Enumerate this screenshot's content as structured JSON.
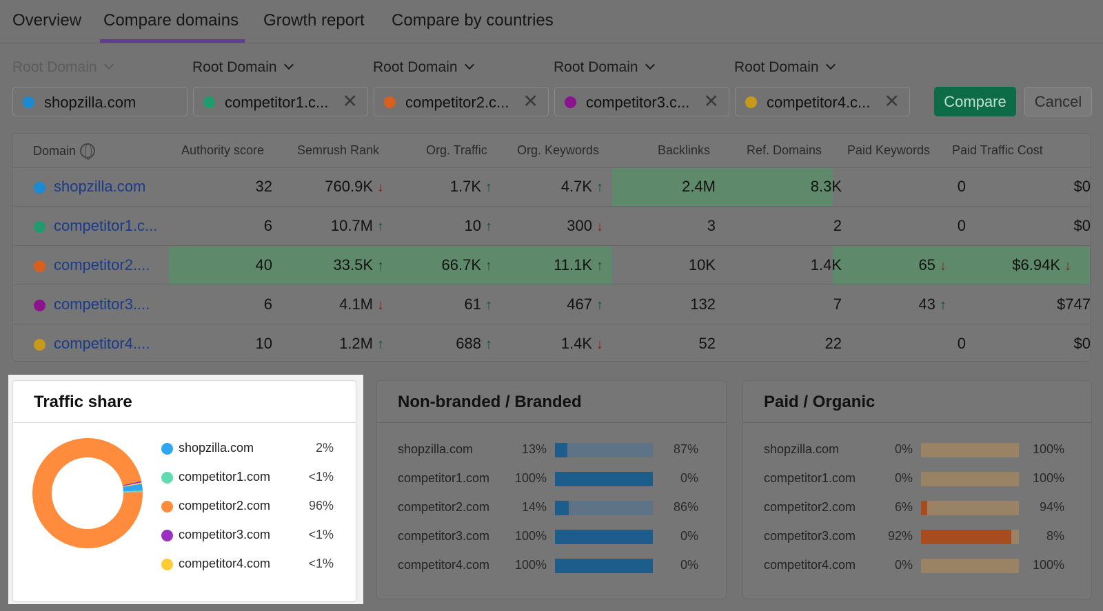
{
  "tabs": [
    "Overview",
    "Compare domains",
    "Growth report",
    "Compare by countries"
  ],
  "selectors": [
    {
      "label": "Root Domain",
      "domain": "shopzilla.com",
      "color": "#1b8ad3",
      "removable": false
    },
    {
      "label": "Root Domain",
      "domain": "competitor1.c...",
      "color": "#1f9b6e",
      "removable": true
    },
    {
      "label": "Root Domain",
      "domain": "competitor2.c...",
      "color": "#d85f1c",
      "removable": true
    },
    {
      "label": "Root Domain",
      "domain": "competitor3.c...",
      "color": "#8b148e",
      "removable": true
    },
    {
      "label": "Root Domain",
      "domain": "competitor4.c...",
      "color": "#c79a1a",
      "removable": true
    }
  ],
  "buttons": {
    "compare": "Compare",
    "cancel": "Cancel",
    "remove": "✕"
  },
  "table": {
    "headers": [
      "Domain",
      "Authority score",
      "Semrush Rank",
      "Org. Traffic",
      "Org. Keywords",
      "Backlinks",
      "Ref. Domains",
      "Paid Keywords",
      "Paid Traffic Cost"
    ],
    "rows": [
      {
        "domain": "shopzilla.com",
        "color": "#1b8ad3",
        "cells": [
          "32",
          "760.9K",
          "1.7K",
          "4.7K",
          "2.4M",
          "8.3K",
          "0",
          "$0"
        ],
        "arrows": [
          "",
          "down",
          "up",
          "up",
          "",
          "",
          "",
          ""
        ],
        "highlight": [
          false,
          false,
          false,
          false,
          true,
          true,
          false,
          false
        ]
      },
      {
        "domain": "competitor1.c...",
        "color": "#1f9b6e",
        "cells": [
          "6",
          "10.7M",
          "10",
          "300",
          "3",
          "2",
          "0",
          "$0"
        ],
        "arrows": [
          "",
          "up",
          "up",
          "down",
          "",
          "",
          "",
          ""
        ],
        "highlight": [
          false,
          false,
          false,
          false,
          false,
          false,
          false,
          false
        ]
      },
      {
        "domain": "competitor2....",
        "color": "#d85f1c",
        "cells": [
          "40",
          "33.5K",
          "66.7K",
          "11.1K",
          "10K",
          "1.4K",
          "65",
          "$6.94K"
        ],
        "arrows": [
          "",
          "up",
          "up",
          "up",
          "",
          "",
          "down",
          "down"
        ],
        "highlight": [
          true,
          true,
          true,
          true,
          false,
          false,
          true,
          true
        ]
      },
      {
        "domain": "competitor3....",
        "color": "#8b148e",
        "cells": [
          "6",
          "4.1M",
          "61",
          "467",
          "132",
          "7",
          "43",
          "$747"
        ],
        "arrows": [
          "",
          "down",
          "up",
          "up",
          "",
          "",
          "up",
          ""
        ],
        "highlight": [
          false,
          false,
          false,
          false,
          false,
          false,
          false,
          false
        ]
      },
      {
        "domain": "competitor4....",
        "color": "#c79a1a",
        "cells": [
          "10",
          "1.2M",
          "688",
          "1.4K",
          "52",
          "22",
          "0",
          "$0"
        ],
        "arrows": [
          "",
          "up",
          "up",
          "down",
          "",
          "",
          "",
          ""
        ],
        "highlight": [
          false,
          false,
          false,
          false,
          false,
          false,
          false,
          false
        ]
      }
    ]
  },
  "traffic_share": {
    "title": "Traffic share",
    "items": [
      {
        "name": "shopzilla.com",
        "pct": "2%",
        "share": 0.02,
        "color": "#2ea7f0"
      },
      {
        "name": "competitor1.com",
        "pct": "<1%",
        "share": 0.004,
        "color": "#5fdcb0"
      },
      {
        "name": "competitor2.com",
        "pct": "96%",
        "share": 0.96,
        "color": "#ff8c3c"
      },
      {
        "name": "competitor3.com",
        "pct": "<1%",
        "share": 0.004,
        "color": "#9b2fbf"
      },
      {
        "name": "competitor4.com",
        "pct": "<1%",
        "share": 0.004,
        "color": "#ffcc33"
      }
    ]
  },
  "branded": {
    "title": "Non-branded / Branded",
    "fill_color": "#1c5d8c",
    "track_color": "#5e7486",
    "rows": [
      {
        "name": "shopzilla.com",
        "left": "13%",
        "right": "87%",
        "fraction": 0.13
      },
      {
        "name": "competitor1.com",
        "left": "100%",
        "right": "0%",
        "fraction": 1.0
      },
      {
        "name": "competitor2.com",
        "left": "14%",
        "right": "86%",
        "fraction": 0.14
      },
      {
        "name": "competitor3.com",
        "left": "100%",
        "right": "0%",
        "fraction": 1.0
      },
      {
        "name": "competitor4.com",
        "left": "100%",
        "right": "0%",
        "fraction": 1.0
      }
    ]
  },
  "paid_organic": {
    "title": "Paid / Organic",
    "fill_color": "#a64c1e",
    "track_color": "#9a8264",
    "rows": [
      {
        "name": "shopzilla.com",
        "left": "0%",
        "right": "100%",
        "fraction": 0.0
      },
      {
        "name": "competitor1.com",
        "left": "0%",
        "right": "100%",
        "fraction": 0.0
      },
      {
        "name": "competitor2.com",
        "left": "6%",
        "right": "94%",
        "fraction": 0.06
      },
      {
        "name": "competitor3.com",
        "left": "92%",
        "right": "8%",
        "fraction": 0.92
      },
      {
        "name": "competitor4.com",
        "left": "0%",
        "right": "100%",
        "fraction": 0.0
      }
    ]
  }
}
